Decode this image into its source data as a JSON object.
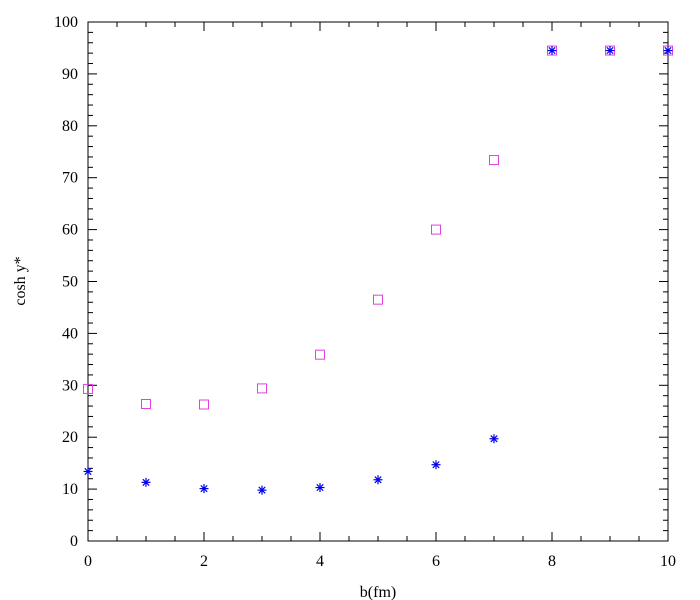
{
  "chart_data": {
    "type": "scatter",
    "xlabel": "b(fm)",
    "ylabel": "cosh y*",
    "xlim": [
      0,
      10
    ],
    "ylim": [
      0,
      100
    ],
    "x_ticks": [
      "0",
      "2",
      "4",
      "6",
      "8",
      "10"
    ],
    "y_ticks": [
      "0",
      "10",
      "20",
      "30",
      "40",
      "50",
      "60",
      "70",
      "80",
      "90",
      "100"
    ],
    "grid": false,
    "series": [
      {
        "marker": "square",
        "color": "#e040e0",
        "x": [
          0,
          1,
          2,
          3,
          4,
          5,
          6,
          7,
          8,
          9,
          10
        ],
        "y": [
          29.3,
          26.4,
          26.3,
          29.4,
          35.9,
          46.5,
          60.0,
          73.4,
          94.5,
          94.5,
          94.5
        ]
      },
      {
        "marker": "asterisk",
        "color": "#0000ee",
        "x": [
          0,
          1,
          2,
          3,
          4,
          5,
          6,
          7,
          8,
          9,
          10
        ],
        "y": [
          13.4,
          11.3,
          10.1,
          9.8,
          10.3,
          11.8,
          14.7,
          19.7,
          94.5,
          94.5,
          94.5
        ]
      }
    ]
  }
}
